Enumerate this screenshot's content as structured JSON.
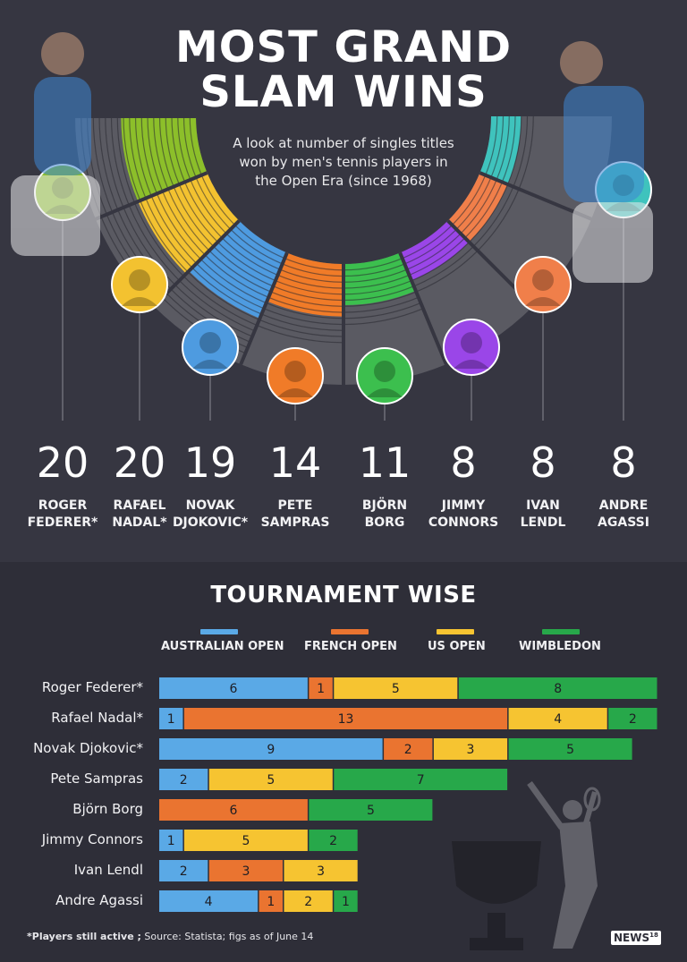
{
  "header": {
    "title": "MOST GRAND SLAM WINS",
    "subtitle": "A look at number of singles titles won by men's tennis players in the Open Era (since 1968)"
  },
  "colors": {
    "australian_open": "#5aa9e6",
    "french_open": "#ea7430",
    "us_open": "#f6c431",
    "wimbledon": "#27a84a",
    "fan": [
      "#8cbf2a",
      "#f3c230",
      "#4e9be0",
      "#f07b28",
      "#3cbf4e",
      "#9a46e8",
      "#f07f4a",
      "#3fc3bd"
    ]
  },
  "players_summary": [
    {
      "count": "20",
      "name_line1": "ROGER",
      "name_line2": "FEDERER*"
    },
    {
      "count": "20",
      "name_line1": "RAFAEL",
      "name_line2": "NADAL*"
    },
    {
      "count": "19",
      "name_line1": "NOVAK",
      "name_line2": "DJOKOVIC*"
    },
    {
      "count": "14",
      "name_line1": "PETE",
      "name_line2": "SAMPRAS"
    },
    {
      "count": "11",
      "name_line1": "BJÖRN",
      "name_line2": "BORG"
    },
    {
      "count": "8",
      "name_line1": "JIMMY",
      "name_line2": "CONNORS"
    },
    {
      "count": "8",
      "name_line1": "IVAN",
      "name_line2": "LENDL"
    },
    {
      "count": "8",
      "name_line1": "ANDRE",
      "name_line2": "AGASSI"
    }
  ],
  "tournament": {
    "title": "TOURNAMENT WISE",
    "legend": [
      "AUSTRALIAN OPEN",
      "FRENCH OPEN",
      "US OPEN",
      "WIMBLEDON"
    ]
  },
  "chart_data": {
    "type": "bar",
    "stacked": true,
    "orientation": "horizontal",
    "title": "TOURNAMENT WISE",
    "categories": [
      "Roger Federer*",
      "Rafael Nadal*",
      "Novak Djokovic*",
      "Pete Sampras",
      "Björn Borg",
      "Jimmy Connors",
      "Ivan Lendl",
      "Andre Agassi"
    ],
    "series": [
      {
        "name": "AUSTRALIAN OPEN",
        "values": [
          6,
          1,
          9,
          2,
          0,
          1,
          2,
          4
        ]
      },
      {
        "name": "FRENCH OPEN",
        "values": [
          1,
          13,
          2,
          0,
          6,
          0,
          3,
          1
        ]
      },
      {
        "name": "US OPEN",
        "values": [
          5,
          4,
          3,
          5,
          0,
          5,
          3,
          2
        ]
      },
      {
        "name": "WIMBLEDON",
        "values": [
          8,
          2,
          5,
          7,
          5,
          2,
          0,
          1
        ]
      }
    ],
    "totals": [
      20,
      20,
      19,
      14,
      11,
      8,
      8,
      8
    ]
  },
  "footer": {
    "note_bold": "*Players still active ;",
    "note_rest": " Source: Statista; figs as of June 14",
    "logo": "NEWS",
    "logo_sup": "18"
  }
}
